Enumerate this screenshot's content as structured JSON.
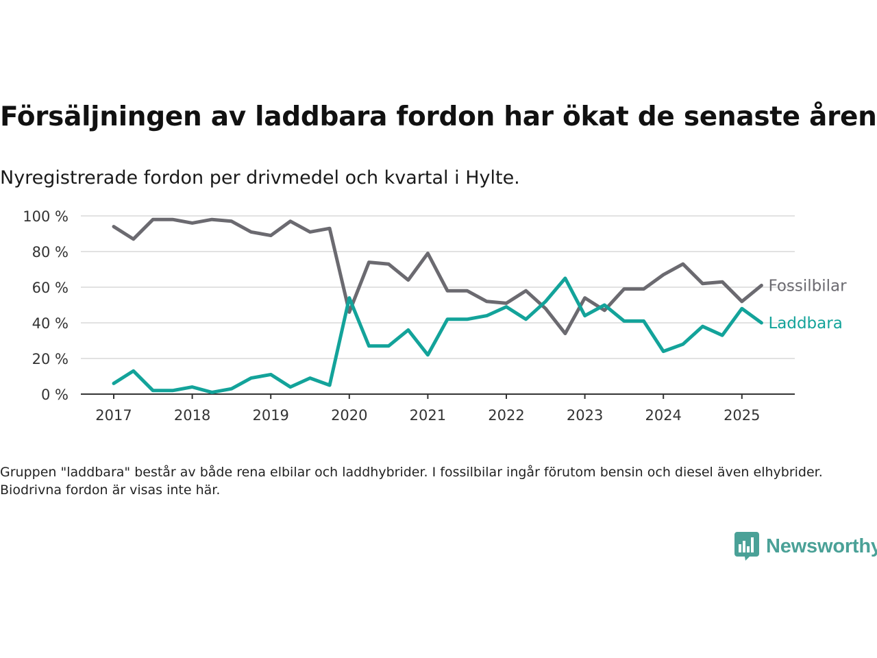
{
  "title": "Försäljningen av laddbara fordon har ökat de senaste åren",
  "subtitle": "Nyregistrerade fordon per drivmedel och kvartal i Hylte.",
  "footnote": "Gruppen \"laddbara\" består av både rena elbilar och laddhybrider. I fossilbilar ingår förutom bensin och diesel även elhybrider. Biodrivna fordon är visas inte här.",
  "brand": {
    "name": "Newsworthy",
    "icon": "newsworthy-logo-icon",
    "color": "#4aa197"
  },
  "chart_data": {
    "type": "line",
    "x": [
      "2017 Q1",
      "2017 Q2",
      "2017 Q3",
      "2017 Q4",
      "2018 Q1",
      "2018 Q2",
      "2018 Q3",
      "2018 Q4",
      "2019 Q1",
      "2019 Q2",
      "2019 Q3",
      "2019 Q4",
      "2020 Q1",
      "2020 Q2",
      "2020 Q3",
      "2020 Q4",
      "2021 Q1",
      "2021 Q2",
      "2021 Q3",
      "2021 Q4",
      "2022 Q1",
      "2022 Q2",
      "2022 Q3",
      "2022 Q4",
      "2023 Q1",
      "2023 Q2",
      "2023 Q3",
      "2023 Q4",
      "2024 Q1",
      "2024 Q2",
      "2024 Q3",
      "2024 Q4",
      "2025 Q1",
      "2025 Q2"
    ],
    "x_ticks": [
      "2017",
      "2018",
      "2019",
      "2020",
      "2021",
      "2022",
      "2023",
      "2024",
      "2025"
    ],
    "y_ticks": [
      "0 %",
      "20 %",
      "40 %",
      "60 %",
      "80 %",
      "100 %"
    ],
    "ylim": [
      0,
      100
    ],
    "grid": true,
    "series": [
      {
        "name": "Fossilbilar",
        "color": "#6b6a70",
        "values": [
          94,
          87,
          98,
          98,
          96,
          98,
          97,
          91,
          89,
          97,
          91,
          93,
          46,
          74,
          73,
          64,
          79,
          58,
          58,
          52,
          51,
          58,
          48,
          34,
          54,
          47,
          59,
          59,
          67,
          73,
          62,
          63,
          52,
          61
        ]
      },
      {
        "name": "Laddbara",
        "color": "#13a39a",
        "values": [
          6,
          13,
          2,
          2,
          4,
          1,
          3,
          9,
          11,
          4,
          9,
          5,
          54,
          27,
          27,
          36,
          22,
          42,
          42,
          44,
          49,
          42,
          52,
          65,
          44,
          50,
          41,
          41,
          24,
          28,
          38,
          33,
          48,
          40
        ]
      }
    ],
    "xlabel": "",
    "ylabel": ""
  }
}
